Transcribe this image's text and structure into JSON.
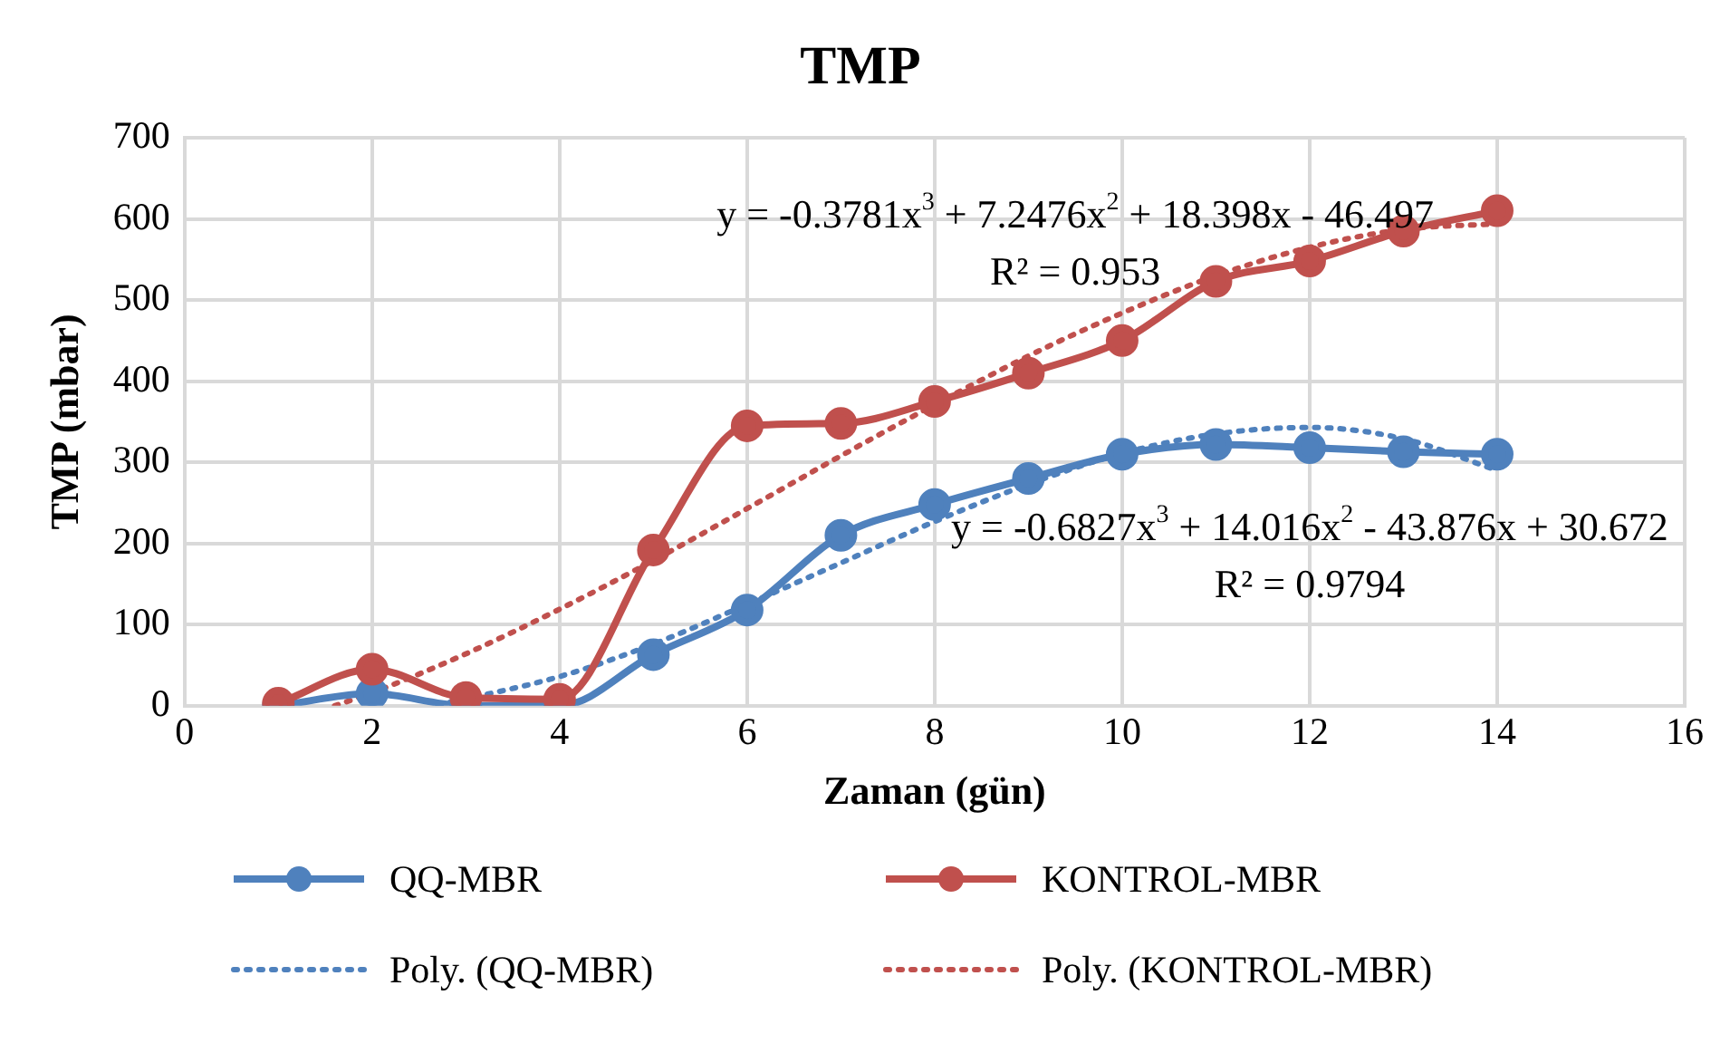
{
  "chart_data": {
    "type": "line",
    "title": "TMP",
    "xlabel": "Zaman (gün)",
    "ylabel": "TMP (mbar)",
    "xlim": [
      0,
      16
    ],
    "xticks": [
      0,
      2,
      4,
      6,
      8,
      10,
      12,
      14,
      16
    ],
    "ylim": [
      0,
      700
    ],
    "yticks": [
      0,
      100,
      200,
      300,
      400,
      500,
      600,
      700
    ],
    "grid": true,
    "legend": "bottom",
    "x": [
      1,
      2,
      3,
      4,
      5,
      6,
      7,
      8,
      9,
      10,
      11,
      12,
      13,
      14
    ],
    "series": [
      {
        "name": "QQ-MBR",
        "color": "#4f81bd",
        "marker": "circle",
        "line_style": "solid",
        "values": [
          0,
          15,
          0,
          0,
          63,
          118,
          210,
          248,
          280,
          310,
          322,
          318,
          313,
          310
        ]
      },
      {
        "name": "KONTROL-MBR",
        "color": "#c0504d",
        "marker": "circle",
        "line_style": "solid",
        "values": [
          3,
          45,
          10,
          8,
          192,
          345,
          348,
          375,
          410,
          450,
          523,
          548,
          585,
          610
        ]
      },
      {
        "name": "Poly. (QQ-MBR)",
        "color": "#4f81bd",
        "marker": "none",
        "line_style": "dotted",
        "x": [
          2.7,
          4,
          5,
          6,
          7,
          8,
          9,
          10,
          11,
          12,
          13,
          14
        ],
        "values": [
          1,
          36,
          76,
          125,
          176,
          227,
          273,
          311,
          335,
          343,
          329,
          290
        ]
      },
      {
        "name": "Poly. (KONTROL-MBR)",
        "color": "#c0504d",
        "marker": "none",
        "line_style": "dotted",
        "x": [
          1.6,
          2,
          3,
          4,
          5,
          6,
          7,
          8,
          9,
          10,
          11,
          12,
          13,
          14
        ],
        "values": [
          0,
          16,
          64,
          119,
          179,
          243,
          308,
          371,
          431,
          484,
          530,
          565,
          587,
          594
        ]
      }
    ],
    "annotations": [
      "y = -0.3781x$^{3}$ + 7.2476x$^{2}$ + 18.398x - 46.497",
      "R² = 0.953",
      "y = -0.6827x$^{3}$ + 14.016x$^{2}$ - 43.876x + 30.672",
      "R² = 0.9794"
    ]
  }
}
